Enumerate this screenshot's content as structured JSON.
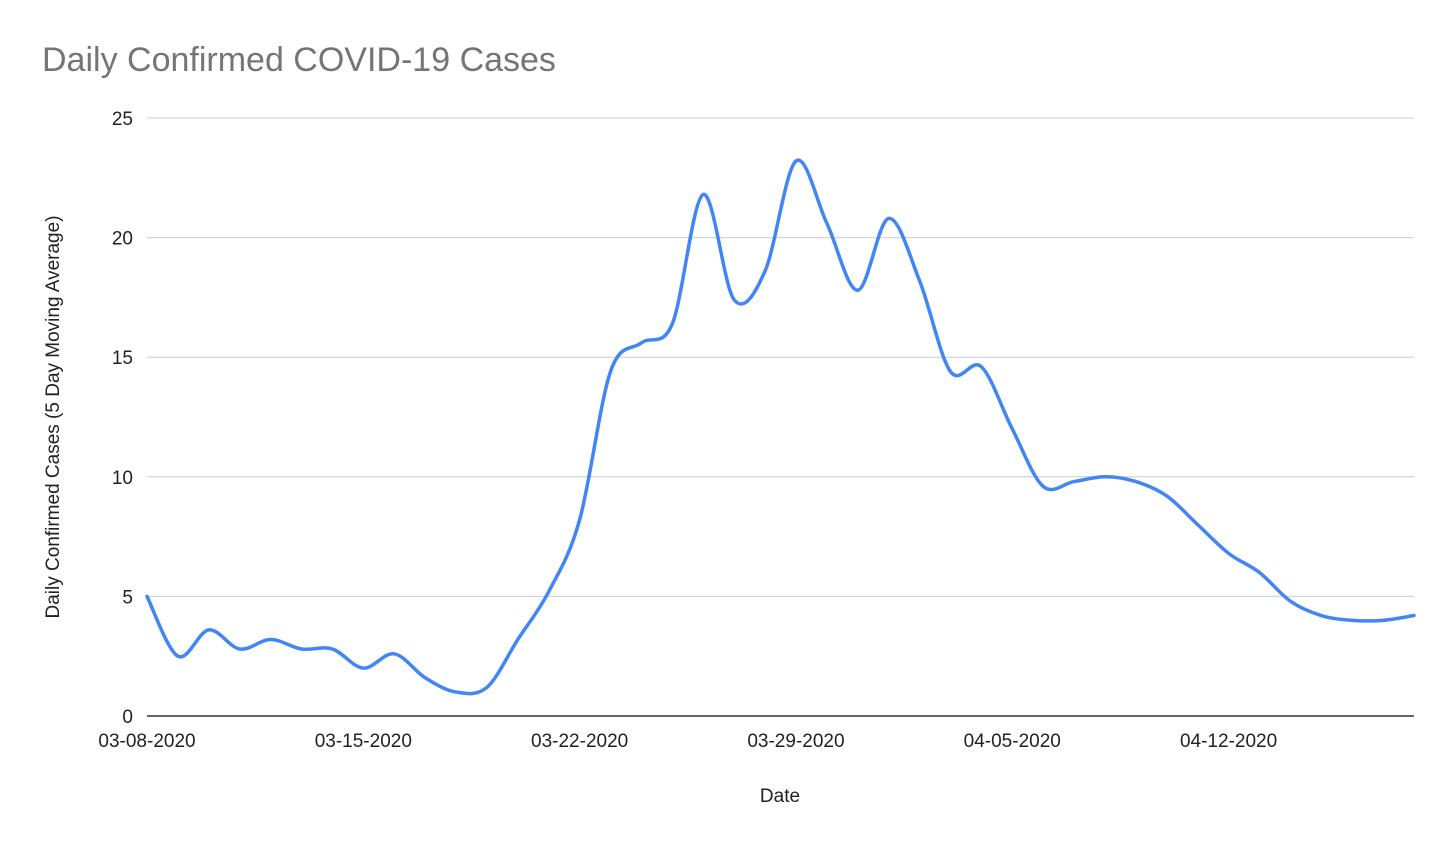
{
  "chart_data": {
    "type": "line",
    "title": "Daily Confirmed COVID-19 Cases",
    "xlabel": "Date",
    "ylabel": "Daily Confirmed Cases (5 Day Moving Average)",
    "ylim": [
      0,
      25
    ],
    "y_ticks": [
      0,
      5,
      10,
      15,
      20,
      25
    ],
    "x_ticks": [
      "03-08-2020",
      "03-15-2020",
      "03-22-2020",
      "03-29-2020",
      "04-05-2020",
      "04-12-2020"
    ],
    "x_range": [
      "03-08-2020",
      "04-18-2020"
    ],
    "grid": true,
    "legend": "none",
    "colors": {
      "series": "#4285f4",
      "grid": "#cccccc",
      "title": "#757575"
    },
    "series": [
      {
        "x": [
          "03-08-2020",
          "03-09-2020",
          "03-10-2020",
          "03-11-2020",
          "03-12-2020",
          "03-13-2020",
          "03-14-2020",
          "03-15-2020",
          "03-16-2020",
          "03-17-2020",
          "03-18-2020",
          "03-19-2020",
          "03-20-2020",
          "03-21-2020",
          "03-22-2020",
          "03-23-2020",
          "03-24-2020",
          "03-25-2020",
          "03-26-2020",
          "03-27-2020",
          "03-28-2020",
          "03-29-2020",
          "03-30-2020",
          "03-31-2020",
          "04-01-2020",
          "04-02-2020",
          "04-03-2020",
          "04-04-2020",
          "04-05-2020",
          "04-06-2020",
          "04-07-2020",
          "04-08-2020",
          "04-09-2020",
          "04-10-2020",
          "04-11-2020",
          "04-12-2020",
          "04-13-2020",
          "04-14-2020",
          "04-15-2020",
          "04-16-2020",
          "04-17-2020",
          "04-18-2020"
        ],
        "values": [
          5.0,
          2.5,
          3.6,
          2.8,
          3.2,
          2.8,
          2.8,
          2.0,
          2.6,
          1.6,
          1.0,
          1.2,
          3.2,
          5.2,
          8.2,
          14.4,
          15.6,
          16.4,
          21.8,
          17.4,
          18.6,
          23.2,
          20.6,
          17.8,
          20.8,
          18.2,
          14.4,
          14.6,
          12.0,
          9.6,
          9.8,
          10.0,
          9.8,
          9.2,
          8.0,
          6.8,
          6.0,
          4.8,
          4.2,
          4.0,
          4.0,
          4.2
        ]
      }
    ]
  }
}
